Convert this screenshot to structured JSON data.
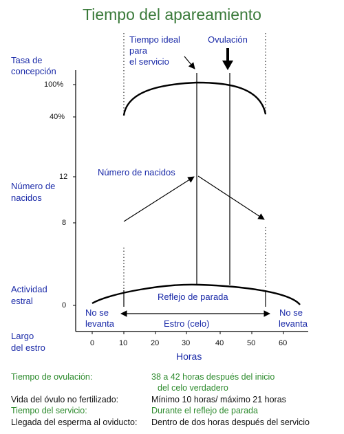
{
  "title": "Tiempo del apareamiento",
  "y_labels": {
    "tasa": [
      "Tasa de",
      "concepción"
    ],
    "nacidos": [
      "Número de",
      "nacidos"
    ],
    "actividad": [
      "Actividad",
      "estral"
    ],
    "largo": [
      "Largo",
      "del estro"
    ]
  },
  "y_ticks": {
    "t100": "100%",
    "t40": "40%",
    "t12": "12",
    "t8": "8",
    "t0": "0"
  },
  "annotations": {
    "tiempo_ideal": [
      "Tiempo ideal",
      "para",
      "el servicio"
    ],
    "ovulacion": "Ovulación",
    "numero_nacidos": "Número de nacidos",
    "reflejo": "Reflejo de parada",
    "no_se_levanta": [
      "No se",
      "levanta"
    ],
    "estro": "Estro (celo)"
  },
  "x_axis": {
    "label": "Horas",
    "ticks": [
      "0",
      "10",
      "20",
      "30",
      "40",
      "50",
      "60"
    ]
  },
  "notes": [
    {
      "label": "Tiempo de ovulación:",
      "value": [
        "38 a 42 horas después del inicio",
        "del celo verdadero"
      ]
    },
    {
      "label": "Vida del óvulo no fertilizado:",
      "value": [
        "Mínimo 10 horas/ máximo 21 horas"
      ]
    },
    {
      "label": "Tiempo del servicio:",
      "value": [
        "Durante el reflejo de parada"
      ]
    },
    {
      "label": "Llegada del esperma al oviducto:",
      "value": [
        "Dentro de dos horas después del servicio"
      ]
    }
  ],
  "colors": {
    "title": "#3a7a3a",
    "labels": "#1a2aa8",
    "notes_green": "#2e8b2e"
  }
}
